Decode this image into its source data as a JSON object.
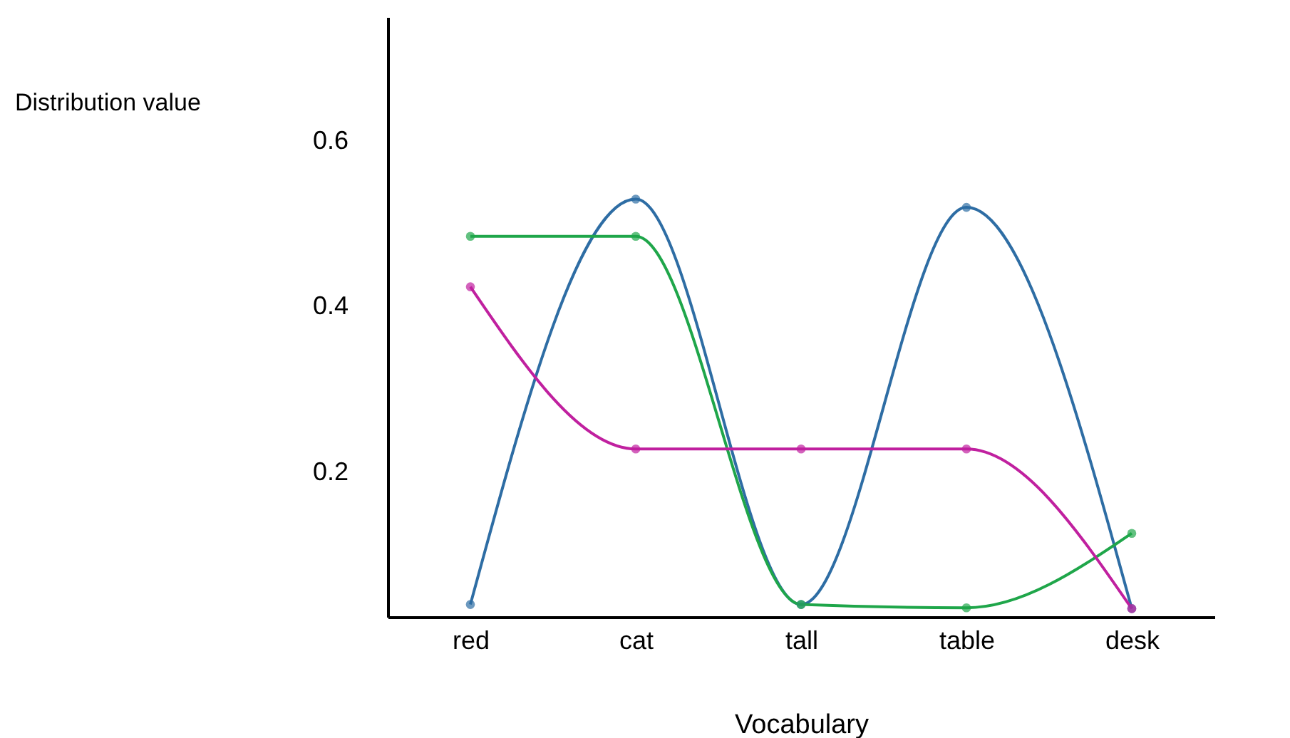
{
  "chart_data": {
    "type": "line",
    "xlabel": "Vocabulary",
    "ylabel": "Distribution value",
    "categories": [
      "red",
      "cat",
      "tall",
      "table",
      "desk"
    ],
    "series": [
      {
        "color": "#2e6da4",
        "values": [
          0.04,
          0.53,
          0.04,
          0.52,
          0.035
        ]
      },
      {
        "color": "#1fa64a",
        "values": [
          0.485,
          0.485,
          0.04,
          0.036,
          0.126
        ]
      },
      {
        "color": "#c0209f",
        "values": [
          0.424,
          0.228,
          0.228,
          0.228,
          0.035
        ]
      }
    ],
    "ylim": [
      0.025,
      0.75
    ],
    "yticks": [
      0.2,
      0.4,
      0.6
    ],
    "grid": false,
    "marker": "circle",
    "line_style": "solid"
  }
}
